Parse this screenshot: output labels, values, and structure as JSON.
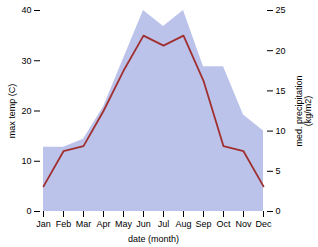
{
  "chart_data": {
    "type": "line",
    "categories": [
      "Jan",
      "Feb",
      "Mar",
      "Apr",
      "May",
      "Jun",
      "Jul",
      "Aug",
      "Sep",
      "Oct",
      "Nov",
      "Dec"
    ],
    "xlabel": "date (month)",
    "ylabel": "max temp (C)",
    "y2label": "med. precipitation\n(kg/m2)",
    "ylim": [
      0,
      40
    ],
    "yticks": [
      0,
      10,
      20,
      30,
      40
    ],
    "y2lim": [
      0,
      25
    ],
    "y2ticks": [
      0,
      5,
      10,
      15,
      20,
      25
    ],
    "grid": false,
    "series": [
      {
        "type": "area",
        "axis": "y2",
        "color": "#b0b8e8",
        "values": [
          8,
          8,
          9,
          13,
          19,
          25,
          23,
          25,
          18,
          18,
          12,
          10
        ]
      },
      {
        "type": "line",
        "color": "#a03030",
        "values": [
          5,
          12,
          13,
          20,
          28,
          35,
          33,
          35,
          26,
          13,
          12,
          5
        ]
      }
    ]
  }
}
